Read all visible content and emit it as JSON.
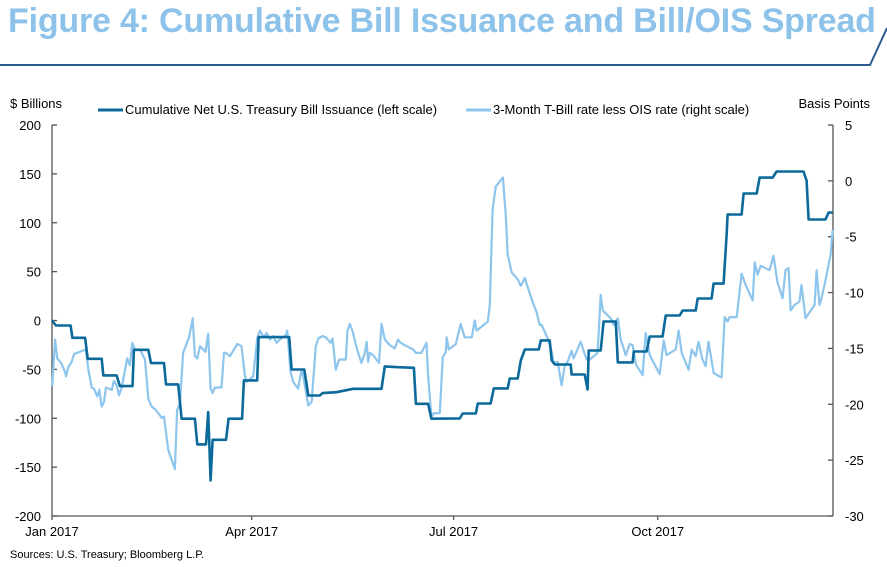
{
  "header": {
    "title": "Figure 4:  Cumulative Bill Issuance and Bill/OIS Spread"
  },
  "footer": {
    "sources": "Sources: U.S. Treasury; Bloomberg L.P."
  },
  "chart_data": {
    "type": "line",
    "title": "Figure 4:  Cumulative Bill Issuance and Bill/OIS Spread",
    "ylabel_left": "$ Billions",
    "ylabel_right": "Basis Points",
    "x_unit": "days since Jan 1 2017",
    "xlim": [
      0,
      352
    ],
    "ylim_left": [
      -200,
      200
    ],
    "ylim_right": [
      -30,
      5
    ],
    "grid": false,
    "legend_position": "top",
    "x_ticks": [
      {
        "label": "Jan 2017",
        "value": 0
      },
      {
        "label": "Apr 2017",
        "value": 90
      },
      {
        "label": "Jul 2017",
        "value": 181
      },
      {
        "label": "Oct 2017",
        "value": 273
      }
    ],
    "y_ticks_left": [
      "200",
      "150",
      "100",
      "50",
      "0",
      "-50",
      "-100",
      "-150",
      "-200"
    ],
    "y_ticks_left_values": [
      200,
      150,
      100,
      50,
      0,
      -50,
      -100,
      -150,
      -200
    ],
    "y_ticks_right": [
      "5",
      "0",
      "-5",
      "-10",
      "-15",
      "-20",
      "-25",
      "-30"
    ],
    "y_ticks_right_values": [
      5,
      0,
      -5,
      -10,
      -15,
      -20,
      -25,
      -30
    ],
    "colors": {
      "issuance": "#0b6a9a",
      "spread": "#8ec5ec",
      "rule": "#2b5b8e",
      "title": "#8dc3ea"
    },
    "series": [
      {
        "name": "Cumulative Net U.S. Treasury Bill Issuance (left scale)",
        "axis": "left",
        "x": [
          0,
          1.8,
          8.4,
          9.2,
          14.9,
          16.1,
          22.4,
          23.1,
          29.1,
          30.6,
          36.3,
          36.9,
          43.4,
          44.6,
          50.5,
          51.4,
          56.9,
          58.4,
          64.4,
          65.5,
          69.4,
          70.4,
          71.5,
          72.4,
          78.4,
          79.6,
          85.7,
          86.5,
          92.5,
          93.1,
          106.9,
          108.0,
          113.7,
          115.5,
          120.7,
          121.9,
          128.2,
          135.7,
          148.5,
          150.0,
          156.0,
          163.1,
          164.0,
          169.5,
          171.0,
          183.8,
          185.1,
          191.0,
          191.9,
          197.7,
          199.1,
          205.4,
          206.3,
          209.9,
          211.3,
          213.1,
          219.4,
          220.3,
          224.3,
          225.2,
          226.6,
          233.8,
          234.2,
          240.1,
          241.4,
          241.9,
          247.3,
          248.6,
          254.1,
          255.0,
          261.7,
          262.2,
          268.0,
          269.4,
          275.2,
          276.6,
          282.9,
          284.2,
          290.1,
          291.0,
          297.3,
          298.2,
          302.7,
          304.1,
          304.5,
          310.8,
          311.7,
          317.6,
          318.9,
          324.8,
          326.6,
          333.3,
          338.7,
          340.1,
          341.0,
          348.6,
          350.0,
          351.8
        ],
        "values": [
          0,
          -5.1,
          -5.1,
          -17.7,
          -17.7,
          -39.2,
          -39.2,
          -56.2,
          -56.2,
          -67.1,
          -67.1,
          -30,
          -30,
          -43.6,
          -43.6,
          -65.4,
          -65.4,
          -100.5,
          -100.5,
          -126.8,
          -126.8,
          -93.7,
          -163.6,
          -122,
          -122,
          -100.5,
          -100.5,
          -61.3,
          -61.3,
          -17,
          -17,
          -50.1,
          -50.1,
          -76.7,
          -76.7,
          -74.3,
          -73.3,
          -69.9,
          -69.9,
          -47,
          -47.8,
          -48.4,
          -85.2,
          -85.2,
          -100.5,
          -100.2,
          -95.1,
          -95.1,
          -84.9,
          -84.9,
          -69.5,
          -69.5,
          -59.3,
          -59.3,
          -40.9,
          -29.7,
          -29.7,
          -20.4,
          -20.4,
          -40.9,
          -45,
          -45,
          -55.2,
          -55.2,
          -70.6,
          -30.7,
          -30.7,
          -1,
          -1,
          -42.9,
          -42.9,
          -31.7,
          -31.7,
          -16.4,
          -16.4,
          5.1,
          5.1,
          10.2,
          10.2,
          22.5,
          22.5,
          37.8,
          37.8,
          89,
          108.4,
          108.4,
          129.9,
          129.9,
          146.2,
          146.2,
          152.4,
          152.4,
          152.4,
          143.1,
          103.3,
          103.3,
          110.4,
          110.4
        ]
      },
      {
        "name": "3-Month T-Bill rate less OIS rate (right scale)",
        "axis": "right",
        "x": [
          0.1,
          1.4,
          2.4,
          4.1,
          5.9,
          6.3,
          7.3,
          8.9,
          9.9,
          15.3,
          16.4,
          17.9,
          18.9,
          20.4,
          21.3,
          22.4,
          23.4,
          24.3,
          26.9,
          27.9,
          29.1,
          30.2,
          31.4,
          33.9,
          35.1,
          36.2,
          37.4,
          39.6,
          41.9,
          43.4,
          44.9,
          46.8,
          49.4,
          50.5,
          52.4,
          55.4,
          56.4,
          57.7,
          59.1,
          61.8,
          63.4,
          64.4,
          65.5,
          66.7,
          69.2,
          70.4,
          71.5,
          72.4,
          73.4,
          76.4,
          77.5,
          78.4,
          80.2,
          83.5,
          85.4,
          86.9,
          87.7,
          90.7,
          92.5,
          93.7,
          95.5,
          96.7,
          98.2,
          99.7,
          101.2,
          102.7,
          105.4,
          106.0,
          107.5,
          108.7,
          110.9,
          112.5,
          113.2,
          115.5,
          117.0,
          118.9,
          120.0,
          121.9,
          123.4,
          125.5,
          126.4,
          127.9,
          129.4,
          132.4,
          133.2,
          134.2,
          135.4,
          137.5,
          139.5,
          141.0,
          141.8,
          142.5,
          143.2,
          144.7,
          147.4,
          148.5,
          150.0,
          152.3,
          154.5,
          156.0,
          157.1,
          159.8,
          162.8,
          164.0,
          166.5,
          168.8,
          169.5,
          171.0,
          172.1,
          174.8,
          176.1,
          177.5,
          177.9,
          178.8,
          182.0,
          184.2,
          186.0,
          189.2,
          190.5,
          191.4,
          196.4,
          197.3,
          198.6,
          200.0,
          203.2,
          204.5,
          205.4,
          207.2,
          209.9,
          211.3,
          213.1,
          214.4,
          216.7,
          218.5,
          219.8,
          220.7,
          223.4,
          225.2,
          226.1,
          227.9,
          229.7,
          231.1,
          232.4,
          234.2,
          235.1,
          238.3,
          239.6,
          241.0,
          242.3,
          245.9,
          247.3,
          248.2,
          251.8,
          253.2,
          255.0,
          256.3,
          258.6,
          260.4,
          261.7,
          263.1,
          266.2,
          267.6,
          269.4,
          273.9,
          275.7,
          277.0,
          281.1,
          282.4,
          283.8,
          286.9,
          288.3,
          290.1,
          291.4,
          293.2,
          294.6,
          295.9,
          298.2,
          301.8,
          303.2,
          304.5,
          305.4,
          308.6,
          310.8,
          312.6,
          315.8,
          316.7,
          318.0,
          319.4,
          323.4,
          325.2,
          327.0,
          329.3,
          330.6,
          332.0,
          332.9,
          334.7,
          336.9,
          337.8,
          339.6,
          343.7,
          344.6,
          345.9,
          346.8,
          348.6,
          350.9,
          351.8
        ],
        "values": [
          -18.4,
          -14.2,
          -15.9,
          -16.3,
          -17.1,
          -17.5,
          -16.7,
          -16.2,
          -15.5,
          -15.1,
          -16.9,
          -18.5,
          -18.6,
          -19.3,
          -18.7,
          -20.2,
          -19.8,
          -18.5,
          -18.7,
          -17.9,
          -18.3,
          -19.2,
          -18.5,
          -15.9,
          -16.5,
          -14.5,
          -15.1,
          -15.1,
          -16.0,
          -19.5,
          -20.2,
          -20.5,
          -21.2,
          -21.1,
          -24.1,
          -25.8,
          -20.5,
          -19.9,
          -15.4,
          -14.0,
          -12.3,
          -15.7,
          -15.9,
          -14.8,
          -15.3,
          -13.7,
          -18.6,
          -19.0,
          -18.5,
          -18.5,
          -15.4,
          -15.4,
          -15.7,
          -14.6,
          -14.8,
          -17.4,
          -18.0,
          -17.5,
          -14.1,
          -13.4,
          -14.0,
          -13.6,
          -14.2,
          -13.9,
          -14.5,
          -14.2,
          -13.8,
          -13.4,
          -17.1,
          -18.0,
          -18.6,
          -16.9,
          -17.5,
          -20.1,
          -19.8,
          -14.8,
          -14.1,
          -13.9,
          -14.0,
          -14.5,
          -14.1,
          -16.9,
          -16.0,
          -16.0,
          -13.4,
          -12.8,
          -13.4,
          -15.1,
          -16.3,
          -15.4,
          -14.4,
          -16.2,
          -15.4,
          -15.6,
          -16.3,
          -12.8,
          -14.2,
          -14.7,
          -15.0,
          -14.2,
          -14.5,
          -14.8,
          -15.1,
          -15.4,
          -15.4,
          -14.5,
          -17.4,
          -21.1,
          -20.8,
          -20.8,
          -15.8,
          -15.3,
          -14.0,
          -15.1,
          -14.6,
          -12.8,
          -14.0,
          -14.0,
          -12.5,
          -13.4,
          -12.6,
          -11.1,
          -2.6,
          -0.5,
          0.3,
          -3.0,
          -6.6,
          -8.2,
          -8.8,
          -9.4,
          -8.7,
          -9.5,
          -10.9,
          -11.8,
          -12.9,
          -12.9,
          -14.1,
          -15.3,
          -16.3,
          -16.2,
          -18.3,
          -16.5,
          -16.2,
          -15.2,
          -15.9,
          -14.4,
          -15.2,
          -16.0,
          -16.0,
          -15.4,
          -10.2,
          -11.6,
          -12.3,
          -12.9,
          -12.3,
          -14.2,
          -15.6,
          -14.6,
          -14.7,
          -16.4,
          -17.4,
          -13.6,
          -15.6,
          -17.3,
          -14.3,
          -15.6,
          -15.1,
          -13.4,
          -15.4,
          -16.9,
          -15.1,
          -15.7,
          -14.4,
          -16.0,
          -16.6,
          -14.4,
          -17.2,
          -17.6,
          -12.2,
          -12.6,
          -12.2,
          -12.2,
          -8.3,
          -9.3,
          -10.7,
          -7.3,
          -8.4,
          -7.6,
          -8.0,
          -6.7,
          -9.1,
          -10.5,
          -8.0,
          -7.8,
          -11.6,
          -11.1,
          -10.8,
          -9.3,
          -12.3,
          -11.1,
          -8.0,
          -11.1,
          -10.5,
          -8.9,
          -6.6,
          -4.4
        ]
      }
    ]
  }
}
